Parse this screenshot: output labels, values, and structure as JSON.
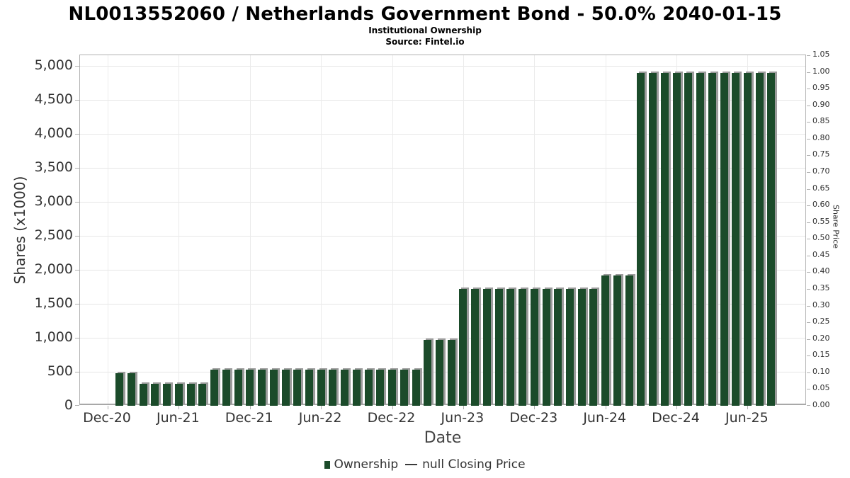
{
  "header": {
    "title": "NL0013552060 / Netherlands Government Bond - 50.0% 2040-01-15",
    "subtitle": "Institutional Ownership",
    "source": "Source: Fintel.io"
  },
  "legend": {
    "ownership_label": "Ownership",
    "price_label": "null Closing Price"
  },
  "colors": {
    "bar": "#1b4b2a",
    "bar_shadow": "#9c9c9c",
    "grid": "#e6e6e6",
    "axis_border": "#b0b0b0",
    "text": "#333333"
  },
  "chart_data": {
    "type": "bar",
    "title": "NL0013552060 / Netherlands Government Bond - 50.0% 2040-01-15",
    "subtitle": "Institutional Ownership",
    "source": "Source: Fintel.io",
    "xlabel": "Date",
    "ylabel_left": "Shares (x1000)",
    "ylabel_right": "Share Price",
    "legend_position": "bottom",
    "grid": true,
    "series_name": "Ownership",
    "secondary_series_name": "null Closing Price",
    "secondary_series_values": [],
    "x_axis": {
      "tick_labels": [
        "Dec-20",
        "Jun-21",
        "Dec-21",
        "Jun-22",
        "Dec-22",
        "Jun-23",
        "Dec-23",
        "Jun-24",
        "Dec-24",
        "Jun-25"
      ],
      "tick_month_offsets": [
        0,
        6,
        12,
        18,
        24,
        30,
        36,
        42,
        48,
        54
      ]
    },
    "y_axis_left": {
      "tick_values": [
        0,
        500,
        1000,
        1500,
        2000,
        2500,
        3000,
        3500,
        4000,
        4500,
        5000
      ],
      "tick_labels": [
        "0",
        "500",
        "1,000",
        "1,500",
        "2,000",
        "2,500",
        "3,000",
        "3,500",
        "4,000",
        "4,500",
        "5,000"
      ],
      "axis_max": 5157
    },
    "y_axis_right": {
      "tick_labels": [
        "0.00",
        "0.05",
        "0.10",
        "0.15",
        "0.20",
        "0.25",
        "0.30",
        "0.35",
        "0.40",
        "0.45",
        "0.50",
        "0.55",
        "0.60",
        "0.65",
        "0.70",
        "0.75",
        "0.80",
        "0.85",
        "0.90",
        "0.95",
        "1.00",
        "1.05"
      ],
      "axis_min": 0.0,
      "axis_max": 1.05
    },
    "categories": [
      "Jan-21",
      "Feb-21",
      "Mar-21",
      "Apr-21",
      "May-21",
      "Jun-21",
      "Jul-21",
      "Aug-21",
      "Sep-21",
      "Oct-21",
      "Nov-21",
      "Dec-21",
      "Jan-22",
      "Feb-22",
      "Mar-22",
      "Apr-22",
      "May-22",
      "Jun-22",
      "Jul-22",
      "Aug-22",
      "Sep-22",
      "Oct-22",
      "Nov-22",
      "Dec-22",
      "Jan-23",
      "Feb-23",
      "Mar-23",
      "Apr-23",
      "May-23",
      "Jun-23",
      "Jul-23",
      "Aug-23",
      "Sep-23",
      "Oct-23",
      "Nov-23",
      "Dec-23",
      "Jan-24",
      "Feb-24",
      "Mar-24",
      "Apr-24",
      "May-24",
      "Jun-24",
      "Jul-24",
      "Aug-24",
      "Sep-24",
      "Oct-24",
      "Nov-24",
      "Dec-24",
      "Jan-25",
      "Feb-25",
      "Mar-25",
      "Apr-25",
      "May-25",
      "Jun-25",
      "Jul-25",
      "Aug-25"
    ],
    "values": [
      480,
      480,
      320,
      320,
      320,
      320,
      320,
      320,
      530,
      530,
      530,
      530,
      530,
      530,
      530,
      530,
      530,
      530,
      530,
      530,
      530,
      530,
      530,
      530,
      530,
      530,
      970,
      970,
      970,
      1720,
      1720,
      1720,
      1720,
      1720,
      1720,
      1720,
      1720,
      1720,
      1720,
      1720,
      1720,
      1920,
      1920,
      1920,
      4900,
      4900,
      4900,
      4900,
      4900,
      4900,
      4900,
      4900,
      4900,
      4900,
      4900,
      4900
    ]
  }
}
